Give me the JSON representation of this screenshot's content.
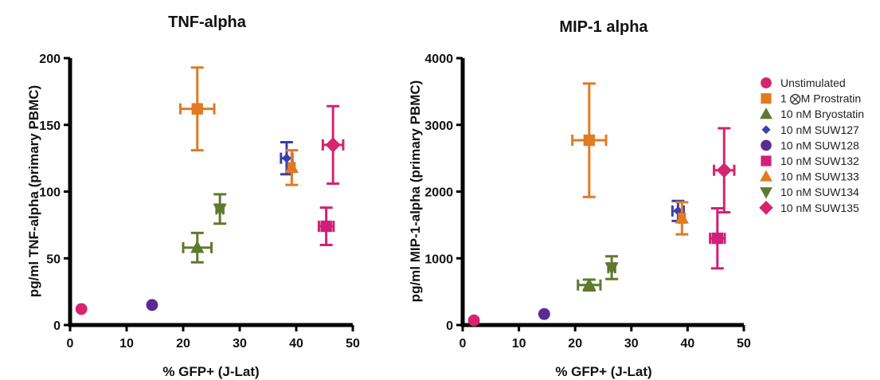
{
  "chart_data": [
    {
      "type": "scatter",
      "title": "TNF-alpha",
      "xlabel": "% GFP+ (J-Lat)",
      "ylabel": "pg/ml TNF-alpha (primary PBMC)",
      "xlim": [
        0,
        50
      ],
      "ylim": [
        0,
        200
      ],
      "xticks": [
        "0",
        "10",
        "20",
        "30",
        "40",
        "50"
      ],
      "yticks": [
        "0",
        "50",
        "100",
        "150",
        "200"
      ],
      "points": [
        {
          "series": 0,
          "x": 2,
          "y": 12,
          "xerr": 0,
          "yerr": 0
        },
        {
          "series": 1,
          "x": 22.5,
          "y": 162,
          "xerr": 3,
          "yerr": 31
        },
        {
          "series": 2,
          "x": 22.5,
          "y": 58,
          "xerr": 2.5,
          "yerr": 11
        },
        {
          "series": 3,
          "x": 38.3,
          "y": 125,
          "xerr": 1,
          "yerr": 12
        },
        {
          "series": 4,
          "x": 14.5,
          "y": 15,
          "xerr": 0,
          "yerr": 0
        },
        {
          "series": 5,
          "x": 45.3,
          "y": 74,
          "xerr": 1.3,
          "yerr": 14
        },
        {
          "series": 6,
          "x": 39.2,
          "y": 118,
          "xerr": 0.5,
          "yerr": 13
        },
        {
          "series": 7,
          "x": 26.5,
          "y": 87,
          "xerr": 0.6,
          "yerr": 11
        },
        {
          "series": 8,
          "x": 46.5,
          "y": 135,
          "xerr": 1.8,
          "yerr": 29
        }
      ]
    },
    {
      "type": "scatter",
      "title": "MIP-1 alpha",
      "xlabel": "% GFP+ (J-Lat)",
      "ylabel": "pg/ml MIP-1-alpha (primary PBMC)",
      "xlim": [
        0,
        50
      ],
      "ylim": [
        0,
        4000
      ],
      "xticks": [
        "0",
        "10",
        "20",
        "30",
        "40",
        "50"
      ],
      "yticks": [
        "0",
        "1000",
        "2000",
        "3000",
        "4000"
      ],
      "points": [
        {
          "series": 0,
          "x": 2,
          "y": 70,
          "xerr": 0,
          "yerr": 0
        },
        {
          "series": 1,
          "x": 22.5,
          "y": 2770,
          "xerr": 3,
          "yerr": 850
        },
        {
          "series": 2,
          "x": 22.5,
          "y": 600,
          "xerr": 2,
          "yerr": 80
        },
        {
          "series": 3,
          "x": 38.3,
          "y": 1710,
          "xerr": 1,
          "yerr": 150
        },
        {
          "series": 4,
          "x": 14.5,
          "y": 165,
          "xerr": 0,
          "yerr": 0
        },
        {
          "series": 5,
          "x": 45.3,
          "y": 1300,
          "xerr": 1.3,
          "yerr": 450
        },
        {
          "series": 6,
          "x": 39,
          "y": 1600,
          "xerr": 0.5,
          "yerr": 240
        },
        {
          "series": 7,
          "x": 26.5,
          "y": 860,
          "xerr": 0.6,
          "yerr": 170
        },
        {
          "series": 8,
          "x": 46.5,
          "y": 2320,
          "xerr": 1.8,
          "yerr": 630
        }
      ]
    }
  ],
  "legend": {
    "placement": "right",
    "items": [
      {
        "label": "Unstimulated",
        "color": "#d6246e",
        "marker": "circle"
      },
      {
        "label": "1 ⨂M Prostratin",
        "color": "#e07b24",
        "marker": "square"
      },
      {
        "label": "10 nM Bryostatin",
        "color": "#5f7a2e",
        "marker": "triangle-up"
      },
      {
        "label": "10 nM SUW127",
        "color": "#3b3fa8",
        "marker": "diamond-small"
      },
      {
        "label": "10 nM SUW128",
        "color": "#5b2a92",
        "marker": "circle"
      },
      {
        "label": "10 nM SUW132",
        "color": "#d01f7a",
        "marker": "square"
      },
      {
        "label": "10 nM SUW133",
        "color": "#e07b24",
        "marker": "triangle-up"
      },
      {
        "label": "10 nM SUW134",
        "color": "#5f7a2e",
        "marker": "triangle-down"
      },
      {
        "label": "10 nM SUW135",
        "color": "#d6246e",
        "marker": "diamond"
      }
    ]
  }
}
